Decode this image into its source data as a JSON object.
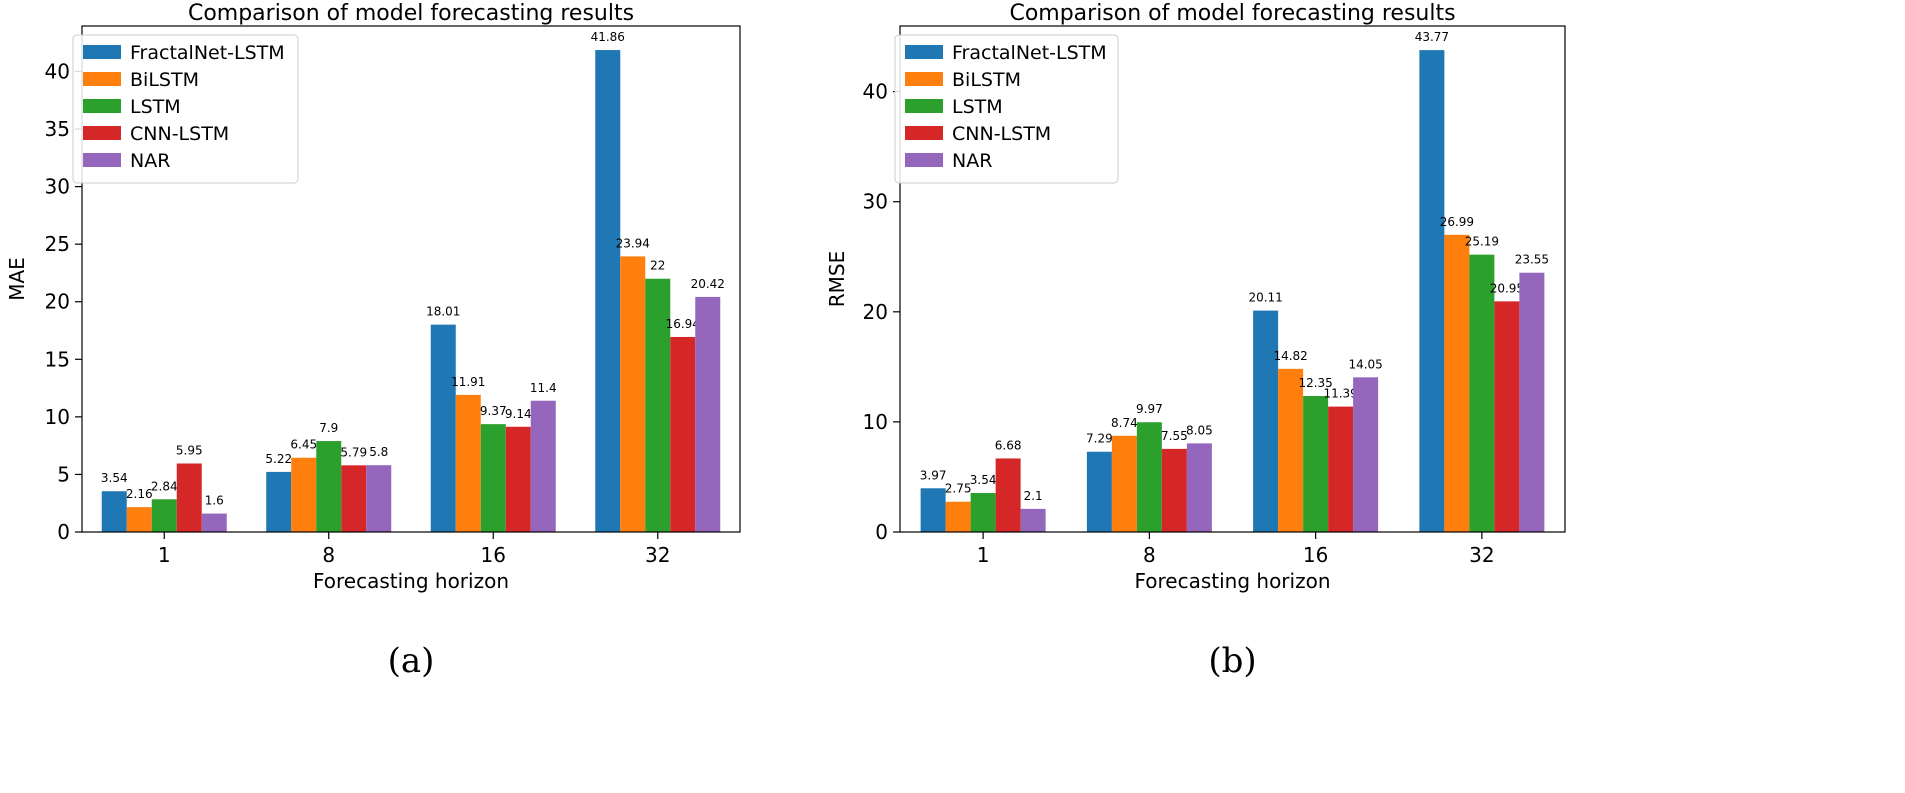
{
  "chart_data": [
    {
      "type": "bar",
      "title": "Comparison of model forecasting results",
      "xlabel": "Forecasting horizon",
      "ylabel": "MAE",
      "caption": "(a)",
      "categories": [
        "1",
        "8",
        "16",
        "32"
      ],
      "ylim": [
        0,
        43.95
      ],
      "yticks": [
        "0",
        "5",
        "10",
        "15",
        "20",
        "25",
        "30",
        "35",
        "40"
      ],
      "legend_position": "top-left",
      "series": [
        {
          "name": "FractalNet-LSTM",
          "color": "#1f77b4",
          "values": [
            3.54,
            5.22,
            18.01,
            41.86
          ],
          "labels": [
            "3.54",
            "5.22",
            "18.01",
            "41.86"
          ]
        },
        {
          "name": "BiLSTM",
          "color": "#ff7f0e",
          "values": [
            2.16,
            6.45,
            11.91,
            23.94
          ],
          "labels": [
            "2.16",
            "6.45",
            "11.91",
            "23.94"
          ]
        },
        {
          "name": "LSTM",
          "color": "#2ca02c",
          "values": [
            2.84,
            7.9,
            9.37,
            22
          ],
          "labels": [
            "2.84",
            "7.9",
            "9.37",
            "22"
          ]
        },
        {
          "name": "CNN-LSTM",
          "color": "#d62728",
          "values": [
            5.95,
            5.79,
            9.14,
            16.94
          ],
          "labels": [
            "5.95",
            "5.79",
            "9.14",
            "16.94"
          ]
        },
        {
          "name": "NAR",
          "color": "#9467bd",
          "values": [
            1.6,
            5.8,
            11.4,
            20.42
          ],
          "labels": [
            "1.6",
            "5.8",
            "11.4",
            "20.42"
          ]
        }
      ]
    },
    {
      "type": "bar",
      "title": "Comparison of model forecasting results",
      "xlabel": "Forecasting horizon",
      "ylabel": "RMSE",
      "caption": "(b)",
      "categories": [
        "1",
        "8",
        "16",
        "32"
      ],
      "ylim": [
        0,
        45.96
      ],
      "yticks": [
        "0",
        "10",
        "20",
        "30",
        "40"
      ],
      "legend_position": "top-left",
      "series": [
        {
          "name": "FractalNet-LSTM",
          "color": "#1f77b4",
          "values": [
            3.97,
            7.29,
            20.11,
            43.77
          ],
          "labels": [
            "3.97",
            "7.29",
            "20.11",
            "43.77"
          ]
        },
        {
          "name": "BiLSTM",
          "color": "#ff7f0e",
          "values": [
            2.75,
            8.74,
            14.82,
            26.99
          ],
          "labels": [
            "2.75",
            "8.74",
            "14.82",
            "26.99"
          ]
        },
        {
          "name": "LSTM",
          "color": "#2ca02c",
          "values": [
            3.54,
            9.97,
            12.35,
            25.19
          ],
          "labels": [
            "3.54",
            "9.97",
            "12.35",
            "25.19"
          ]
        },
        {
          "name": "CNN-LSTM",
          "color": "#d62728",
          "values": [
            6.68,
            7.55,
            11.39,
            20.95
          ],
          "labels": [
            "6.68",
            "7.55",
            "11.39",
            "20.95"
          ]
        },
        {
          "name": "NAR",
          "color": "#9467bd",
          "values": [
            2.1,
            8.05,
            14.05,
            23.55
          ],
          "labels": [
            "2.1",
            "8.05",
            "14.05",
            "23.55"
          ]
        }
      ]
    }
  ]
}
